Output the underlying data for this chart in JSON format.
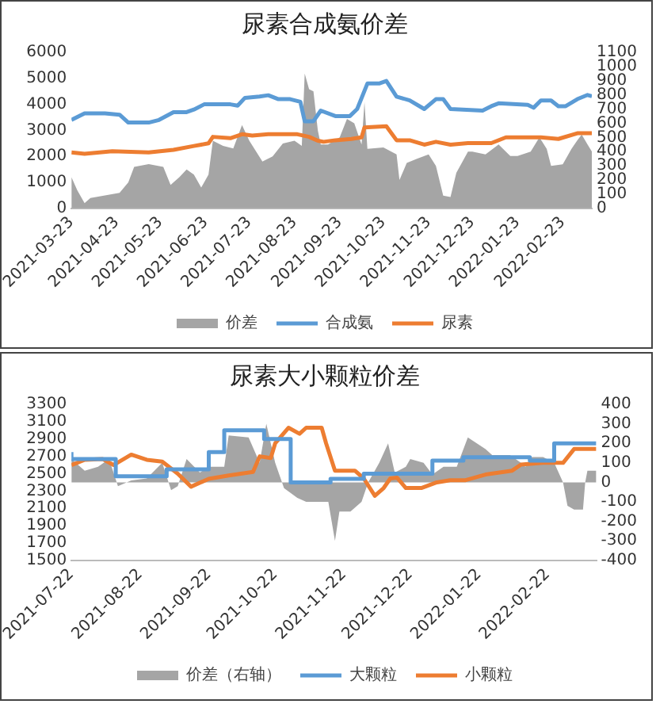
{
  "chart_data": [
    {
      "type": "line",
      "title": "尿素合成氨价差",
      "legend": "bottom",
      "marker": "none",
      "xlim": [
        "2021-03-23",
        "2022-03-15"
      ],
      "xticks": [
        "2021-03-23",
        "2021-04-23",
        "2021-05-23",
        "2021-06-23",
        "2021-07-23",
        "2021-08-23",
        "2021-09-23",
        "2021-10-23",
        "2021-11-23",
        "2021-12-23",
        "2022-01-23",
        "2022-02-23"
      ],
      "ylim": [
        0,
        6000
      ],
      "yticks": [
        0,
        1000,
        2000,
        3000,
        4000,
        5000,
        6000
      ],
      "y2lim": [
        0,
        1100
      ],
      "y2ticks": [
        0,
        100,
        200,
        300,
        400,
        500,
        600,
        700,
        800,
        900,
        1000,
        1100
      ],
      "series": [
        {
          "name": "价差",
          "type": "area",
          "axis": "y2",
          "color": "#a5a5a5",
          "x": [
            "2021-03-23",
            "2021-03-27",
            "2021-04-01",
            "2021-04-05",
            "2021-04-15",
            "2021-04-25",
            "2021-05-01",
            "2021-05-05",
            "2021-05-15",
            "2021-05-25",
            "2021-05-30",
            "2021-06-05",
            "2021-06-10",
            "2021-06-15",
            "2021-06-20",
            "2021-06-25",
            "2021-06-28",
            "2021-07-05",
            "2021-07-12",
            "2021-07-18",
            "2021-07-23",
            "2021-08-01",
            "2021-08-08",
            "2021-08-15",
            "2021-08-23",
            "2021-08-28",
            "2021-08-30",
            "2021-09-02",
            "2021-09-05",
            "2021-09-08",
            "2021-09-10",
            "2021-09-15",
            "2021-09-23",
            "2021-09-28",
            "2021-10-03",
            "2021-10-08",
            "2021-10-10",
            "2021-10-12",
            "2021-10-23",
            "2021-11-01",
            "2021-11-03",
            "2021-11-08",
            "2021-11-15",
            "2021-11-23",
            "2021-11-28",
            "2021-12-03",
            "2021-12-08",
            "2021-12-12",
            "2021-12-20",
            "2021-12-23",
            "2022-01-01",
            "2022-01-10",
            "2022-01-18",
            "2022-01-23",
            "2022-02-01",
            "2022-02-07",
            "2022-02-12",
            "2022-02-15",
            "2022-02-23",
            "2022-03-01",
            "2022-03-05",
            "2022-03-08",
            "2022-03-12",
            "2022-03-15"
          ],
          "values": [
            220,
            128,
            37,
            73,
            92,
            110,
            183,
            293,
            312,
            293,
            165,
            220,
            275,
            238,
            147,
            238,
            477,
            440,
            422,
            587,
            477,
            330,
            367,
            458,
            477,
            440,
            950,
            840,
            825,
            550,
            450,
            450,
            500,
            630,
            600,
            450,
            750,
            420,
            430,
            380,
            200,
            320,
            350,
            380,
            300,
            90,
            80,
            250,
            400,
            400,
            380,
            450,
            370,
            370,
            400,
            500,
            420,
            300,
            310,
            420,
            480,
            520,
            450,
            400
          ]
        },
        {
          "name": "合成氨",
          "type": "line",
          "color": "#5b9bd5",
          "x": [
            "2021-03-23",
            "2021-04-01",
            "2021-04-15",
            "2021-04-25",
            "2021-05-01",
            "2021-05-15",
            "2021-05-22",
            "2021-06-01",
            "2021-06-10",
            "2021-06-15",
            "2021-06-22",
            "2021-07-10",
            "2021-07-15",
            "2021-07-20",
            "2021-07-30",
            "2021-08-05",
            "2021-08-12",
            "2021-08-20",
            "2021-08-27",
            "2021-08-30",
            "2021-09-05",
            "2021-09-10",
            "2021-09-20",
            "2021-09-30",
            "2021-10-05",
            "2021-10-12",
            "2021-10-20",
            "2021-10-25",
            "2021-11-01",
            "2021-11-10",
            "2021-11-20",
            "2021-11-28",
            "2021-12-03",
            "2021-12-08",
            "2021-12-30",
            "2022-01-05",
            "2022-01-10",
            "2022-01-30",
            "2022-02-03",
            "2022-02-08",
            "2022-02-15",
            "2022-02-20",
            "2022-02-25",
            "2022-03-05",
            "2022-03-12",
            "2022-03-15"
          ],
          "values": [
            3400,
            3650,
            3650,
            3600,
            3300,
            3300,
            3400,
            3700,
            3700,
            3800,
            4000,
            4000,
            3950,
            4250,
            4300,
            4350,
            4200,
            4200,
            4100,
            3350,
            3350,
            3760,
            3550,
            3550,
            3820,
            4800,
            4800,
            4900,
            4300,
            4150,
            3820,
            4200,
            4200,
            3820,
            3760,
            3930,
            4040,
            3980,
            3870,
            4150,
            4150,
            3930,
            3930,
            4200,
            4360,
            4310
          ]
        },
        {
          "name": "尿素",
          "type": "line",
          "color": "#ed7d31",
          "x": [
            "2021-03-23",
            "2021-04-01",
            "2021-04-20",
            "2021-05-15",
            "2021-06-01",
            "2021-06-15",
            "2021-06-25",
            "2021-06-28",
            "2021-07-10",
            "2021-07-18",
            "2021-07-25",
            "2021-08-05",
            "2021-08-25",
            "2021-09-02",
            "2021-09-08",
            "2021-09-12",
            "2021-09-20",
            "2021-10-01",
            "2021-10-08",
            "2021-10-10",
            "2021-10-25",
            "2021-11-01",
            "2021-11-10",
            "2021-11-20",
            "2021-11-28",
            "2021-12-08",
            "2021-12-20",
            "2022-01-05",
            "2022-01-15",
            "2022-02-08",
            "2022-02-20",
            "2022-03-05",
            "2022-03-15"
          ],
          "values": [
            2150,
            2100,
            2200,
            2150,
            2250,
            2400,
            2500,
            2750,
            2700,
            2850,
            2800,
            2850,
            2850,
            2750,
            2600,
            2560,
            2620,
            2670,
            2730,
            3110,
            3160,
            2620,
            2620,
            2450,
            2560,
            2450,
            2510,
            2510,
            2730,
            2730,
            2670,
            2890,
            2890
          ]
        }
      ]
    },
    {
      "type": "line",
      "title": "尿素大小颗粒价差",
      "legend": "bottom",
      "marker": "none",
      "xlim": [
        "2021-07-22",
        "2022-03-16"
      ],
      "xticks": [
        "2021-07-22",
        "2021-08-22",
        "2021-09-22",
        "2021-10-22",
        "2021-11-22",
        "2021-12-22",
        "2022-01-22",
        "2022-02-22"
      ],
      "ylim": [
        1500,
        3300
      ],
      "yticks": [
        1500,
        1700,
        1900,
        2100,
        2300,
        2500,
        2700,
        2900,
        3100,
        3300
      ],
      "y2lim": [
        -400,
        400
      ],
      "y2ticks": [
        -400,
        -300,
        -200,
        -100,
        0,
        100,
        200,
        300,
        400
      ],
      "series": [
        {
          "name": "价差（右轴）",
          "type": "area",
          "axis": "y2",
          "color": "#a5a5a5",
          "x": [
            "2021-07-22",
            "2021-07-28",
            "2021-08-03",
            "2021-08-08",
            "2021-08-12",
            "2021-08-18",
            "2021-08-25",
            "2021-09-01",
            "2021-09-05",
            "2021-09-08",
            "2021-09-12",
            "2021-09-18",
            "2021-09-22",
            "2021-09-29",
            "2021-10-01",
            "2021-10-10",
            "2021-10-15",
            "2021-10-18",
            "2021-10-22",
            "2021-10-26",
            "2021-11-01",
            "2021-11-05",
            "2021-11-12",
            "2021-11-15",
            "2021-11-18",
            "2021-11-20",
            "2021-11-25",
            "2021-11-30",
            "2021-12-03",
            "2021-12-08",
            "2021-12-12",
            "2021-12-15",
            "2021-12-20",
            "2021-12-22",
            "2021-12-28",
            "2022-01-01",
            "2022-01-06",
            "2022-01-12",
            "2022-01-17",
            "2022-01-25",
            "2022-01-28",
            "2022-02-05",
            "2022-02-10",
            "2022-02-12",
            "2022-02-15",
            "2022-02-20",
            "2022-02-25",
            "2022-03-01",
            "2022-03-03",
            "2022-03-06",
            "2022-03-10",
            "2022-03-11",
            "2022-03-12",
            "2022-03-16"
          ],
          "values": [
            120,
            60,
            80,
            120,
            -20,
            10,
            20,
            100,
            -40,
            -20,
            120,
            50,
            80,
            80,
            240,
            230,
            100,
            300,
            100,
            -30,
            -80,
            -100,
            -100,
            -100,
            -300,
            -150,
            -150,
            -100,
            0,
            100,
            200,
            50,
            80,
            120,
            100,
            40,
            80,
            80,
            230,
            170,
            140,
            140,
            100,
            80,
            130,
            130,
            100,
            0,
            -120,
            -140,
            -140,
            0,
            60,
            60
          ]
        },
        {
          "name": "大颗粒",
          "type": "step",
          "color": "#5b9bd5",
          "x": [
            "2021-07-22",
            "2021-08-11",
            "2021-09-03",
            "2021-09-22",
            "2021-09-29",
            "2021-10-17",
            "2021-10-29",
            "2021-11-16",
            "2021-12-01",
            "2022-01-01",
            "2022-01-15",
            "2022-02-14",
            "2022-02-25",
            "2022-03-13",
            "2022-03-16"
          ],
          "values": [
            2750,
            2670,
            2470,
            2550,
            2750,
            3000,
            2900,
            2400,
            2440,
            2500,
            2650,
            2690,
            2650,
            2850,
            2850
          ]
        },
        {
          "name": "小颗粒",
          "type": "line",
          "color": "#ed7d31",
          "x": [
            "2021-07-22",
            "2021-07-28",
            "2021-08-05",
            "2021-08-10",
            "2021-08-18",
            "2021-08-25",
            "2021-09-01",
            "2021-09-08",
            "2021-09-14",
            "2021-09-22",
            "2021-10-01",
            "2021-10-12",
            "2021-10-15",
            "2021-10-20",
            "2021-10-22",
            "2021-10-28",
            "2021-11-02",
            "2021-11-05",
            "2021-11-12",
            "2021-11-14",
            "2021-11-18",
            "2021-11-27",
            "2021-12-01",
            "2021-12-06",
            "2021-12-10",
            "2021-12-13",
            "2021-12-16",
            "2021-12-20",
            "2021-12-27",
            "2022-01-03",
            "2022-01-09",
            "2022-01-16",
            "2022-01-25",
            "2022-02-06",
            "2022-02-10",
            "2022-02-20",
            "2022-03-01",
            "2022-03-06",
            "2022-03-16"
          ],
          "values": [
            2600,
            2660,
            2670,
            2600,
            2720,
            2660,
            2640,
            2500,
            2350,
            2440,
            2480,
            2520,
            2700,
            2680,
            2850,
            3030,
            2960,
            3030,
            3030,
            2850,
            2535,
            2535,
            2445,
            2245,
            2335,
            2445,
            2455,
            2335,
            2335,
            2400,
            2425,
            2425,
            2490,
            2535,
            2605,
            2625,
            2625,
            2785,
            2785
          ]
        }
      ]
    }
  ]
}
